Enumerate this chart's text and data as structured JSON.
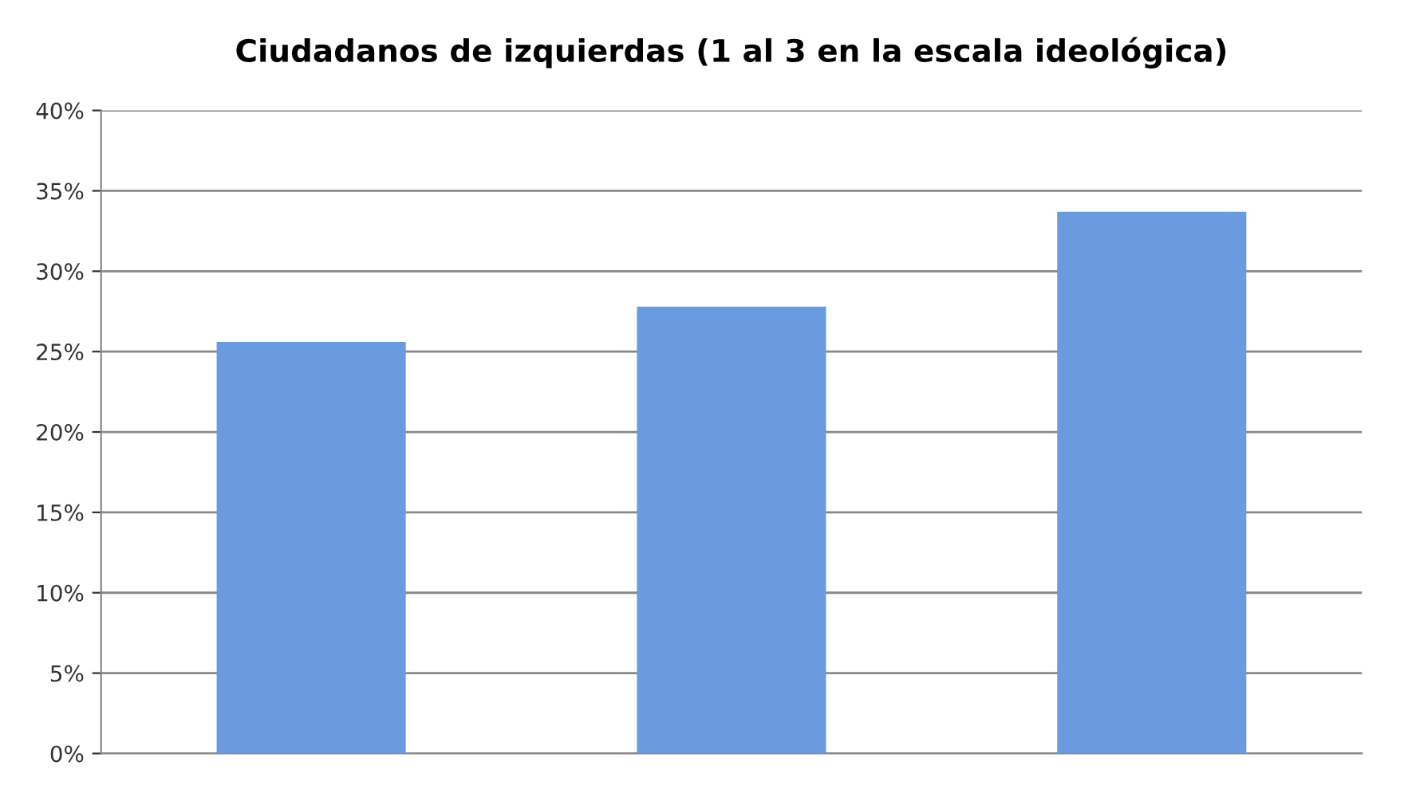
{
  "chart_data": {
    "type": "bar",
    "title": "Ciudadanos de izquierdas (1 al 3 en la escala ideológica)",
    "categories": [
      null,
      null,
      null
    ],
    "values": [
      25.6,
      27.8,
      33.7
    ],
    "color": "#6a9be0",
    "ylim": [
      0,
      40
    ],
    "yticks": [
      {
        "value": 0,
        "label": "0%"
      },
      {
        "value": 5,
        "label": "5%"
      },
      {
        "value": 10,
        "label": "10%"
      },
      {
        "value": 15,
        "label": "15%"
      },
      {
        "value": 20,
        "label": "20%"
      },
      {
        "value": 25,
        "label": "25%"
      },
      {
        "value": 30,
        "label": "30%"
      },
      {
        "value": 35,
        "label": "35%"
      },
      {
        "value": 40,
        "label": "40%"
      }
    ],
    "grid": "y",
    "legend": false
  }
}
